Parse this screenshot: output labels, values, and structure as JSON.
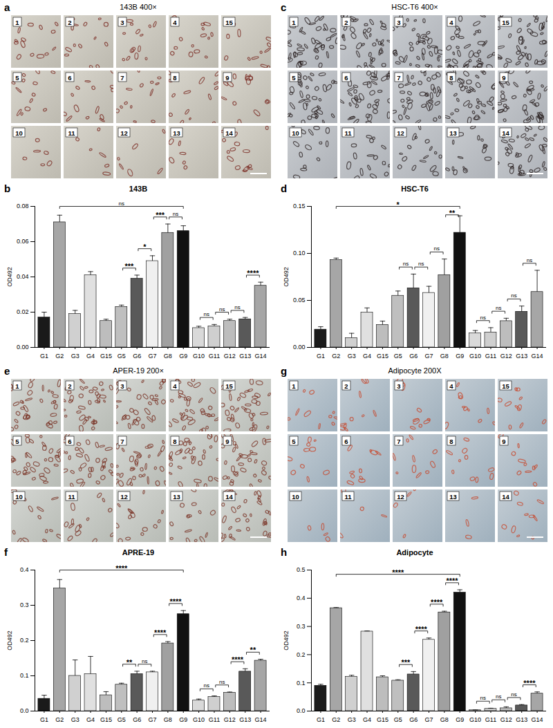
{
  "panels": [
    {
      "letter": "a",
      "title": "143B 400×",
      "tiles": [
        [
          "1",
          "2",
          "3",
          "4",
          "15"
        ],
        [
          "5",
          "6",
          "7",
          "8",
          "9"
        ],
        [
          "10",
          "11",
          "12",
          "13",
          "14"
        ]
      ]
    },
    {
      "letter": "c",
      "title": "HSC-T6 400×",
      "tiles": [
        [
          "1",
          "2",
          "3",
          "4",
          "15"
        ],
        [
          "5",
          "6",
          "7",
          "8",
          "9"
        ],
        [
          "10",
          "11",
          "12",
          "13",
          "14"
        ]
      ]
    },
    {
      "letter": "e",
      "title": "APER-19 200×",
      "tiles": [
        [
          "1",
          "2",
          "3",
          "4",
          "15"
        ],
        [
          "5",
          "6",
          "7",
          "8",
          "9"
        ],
        [
          "10",
          "11",
          "12",
          "13",
          "14"
        ]
      ]
    },
    {
      "letter": "g",
      "title": "Adipocyte 200X",
      "tiles": [
        [
          "1",
          "2",
          "3",
          "4",
          "15"
        ],
        [
          "5",
          "6",
          "7",
          "8",
          "9"
        ],
        [
          "10",
          "11",
          "12",
          "13",
          "14"
        ]
      ]
    }
  ],
  "chart_data": [
    {
      "panel": "b",
      "type": "bar",
      "title": "143B",
      "y_label": "OD492",
      "categories": [
        "G1",
        "G2",
        "G3",
        "G4",
        "G15",
        "G5",
        "G6",
        "G7",
        "G8",
        "G9",
        "G10",
        "G11",
        "G12",
        "G13",
        "G14"
      ],
      "values": [
        0.017,
        0.071,
        0.019,
        0.041,
        0.015,
        0.023,
        0.039,
        0.049,
        0.065,
        0.066,
        0.011,
        0.012,
        0.015,
        0.016,
        0.035
      ],
      "errors": [
        0.003,
        0.004,
        0.002,
        0.002,
        0.001,
        0.001,
        0.002,
        0.003,
        0.005,
        0.003,
        0.001,
        0.001,
        0.001,
        0.001,
        0.002
      ],
      "colors": [
        "#1a1a1a",
        "#a6a6a6",
        "#d0d0d0",
        "#e0e0e0",
        "#bdbdbd",
        "#bfbfbf",
        "#595959",
        "#f0f0f0",
        "#a0a0a0",
        "#111111",
        "#d9d9d9",
        "#cfcfcf",
        "#bdbdbd",
        "#595959",
        "#a6a6a6"
      ],
      "ylim": [
        0,
        0.08
      ],
      "yticks": [
        {
          "value": 0,
          "label": "0.00"
        },
        {
          "value": 0.02,
          "label": "0.02"
        },
        {
          "value": 0.04,
          "label": "0.04"
        },
        {
          "value": 0.06,
          "label": "0.06"
        },
        {
          "value": 0.08,
          "label": "0.08"
        }
      ],
      "annotations": [
        {
          "from": "G2",
          "to": "G9",
          "label": "ns"
        },
        {
          "from": "G5",
          "to": "G6",
          "label": "***"
        },
        {
          "from": "G6",
          "to": "G7",
          "label": "*"
        },
        {
          "from": "G7",
          "to": "G8",
          "label": "***"
        },
        {
          "from": "G8",
          "to": "G9",
          "label": "ns"
        },
        {
          "from": "G10",
          "to": "G11",
          "label": "ns"
        },
        {
          "from": "G11",
          "to": "G12",
          "label": "ns"
        },
        {
          "from": "G12",
          "to": "G13",
          "label": "ns"
        },
        {
          "from": "G13",
          "to": "G14",
          "label": "****"
        }
      ]
    },
    {
      "panel": "d",
      "type": "bar",
      "title": "HSC-T6",
      "y_label": "OD492",
      "categories": [
        "G1",
        "G2",
        "G3",
        "G4",
        "G15",
        "G5",
        "G6",
        "G7",
        "G8",
        "G9",
        "G10",
        "G11",
        "G12",
        "G13",
        "G14"
      ],
      "values": [
        0.019,
        0.093,
        0.01,
        0.037,
        0.024,
        0.055,
        0.063,
        0.058,
        0.077,
        0.122,
        0.015,
        0.016,
        0.028,
        0.038,
        0.059
      ],
      "errors": [
        0.003,
        0.002,
        0.005,
        0.005,
        0.004,
        0.005,
        0.015,
        0.007,
        0.017,
        0.018,
        0.003,
        0.005,
        0.003,
        0.006,
        0.023
      ],
      "colors": [
        "#1a1a1a",
        "#a6a6a6",
        "#d0d0d0",
        "#e0e0e0",
        "#bdbdbd",
        "#bfbfbf",
        "#595959",
        "#f0f0f0",
        "#a0a0a0",
        "#111111",
        "#d9d9d9",
        "#cfcfcf",
        "#bdbdbd",
        "#595959",
        "#a6a6a6"
      ],
      "ylim": [
        0,
        0.15
      ],
      "yticks": [
        {
          "value": 0,
          "label": "0.00"
        },
        {
          "value": 0.05,
          "label": "0.05"
        },
        {
          "value": 0.1,
          "label": "0.10"
        },
        {
          "value": 0.15,
          "label": "0.15"
        }
      ],
      "annotations": [
        {
          "from": "G2",
          "to": "G9",
          "label": "*"
        },
        {
          "from": "G5",
          "to": "G6",
          "label": "ns"
        },
        {
          "from": "G6",
          "to": "G7",
          "label": "ns"
        },
        {
          "from": "G7",
          "to": "G8",
          "label": "ns"
        },
        {
          "from": "G8",
          "to": "G9",
          "label": "**"
        },
        {
          "from": "G10",
          "to": "G11",
          "label": "ns"
        },
        {
          "from": "G11",
          "to": "G12",
          "label": "ns"
        },
        {
          "from": "G12",
          "to": "G13",
          "label": "ns"
        },
        {
          "from": "G13",
          "to": "G14",
          "label": "ns"
        }
      ]
    },
    {
      "panel": "f",
      "type": "bar",
      "title": "APRE-19",
      "y_label": "OD492",
      "categories": [
        "G1",
        "G2",
        "G3",
        "G4",
        "G15",
        "G5",
        "G6",
        "G7",
        "G8",
        "G9",
        "G10",
        "G11",
        "G12",
        "G13",
        "G14"
      ],
      "values": [
        0.035,
        0.348,
        0.1,
        0.105,
        0.045,
        0.075,
        0.105,
        0.11,
        0.192,
        0.275,
        0.03,
        0.04,
        0.052,
        0.112,
        0.143
      ],
      "errors": [
        0.01,
        0.025,
        0.045,
        0.05,
        0.01,
        0.004,
        0.008,
        0.003,
        0.005,
        0.01,
        0.004,
        0.003,
        0.002,
        0.008,
        0.004
      ],
      "colors": [
        "#1a1a1a",
        "#a6a6a6",
        "#d0d0d0",
        "#e0e0e0",
        "#bdbdbd",
        "#bfbfbf",
        "#595959",
        "#f0f0f0",
        "#a0a0a0",
        "#111111",
        "#d9d9d9",
        "#cfcfcf",
        "#bdbdbd",
        "#595959",
        "#a6a6a6"
      ],
      "ylim": [
        0,
        0.4
      ],
      "yticks": [
        {
          "value": 0,
          "label": "0.0"
        },
        {
          "value": 0.1,
          "label": "0.1"
        },
        {
          "value": 0.2,
          "label": "0.2"
        },
        {
          "value": 0.3,
          "label": "0.3"
        },
        {
          "value": 0.4,
          "label": "0.4"
        }
      ],
      "annotations": [
        {
          "from": "G2",
          "to": "G9",
          "label": "****"
        },
        {
          "from": "G5",
          "to": "G6",
          "label": "**"
        },
        {
          "from": "G6",
          "to": "G7",
          "label": "ns"
        },
        {
          "from": "G7",
          "to": "G8",
          "label": "****"
        },
        {
          "from": "G8",
          "to": "G9",
          "label": "****"
        },
        {
          "from": "G10",
          "to": "G11",
          "label": "ns"
        },
        {
          "from": "G11",
          "to": "G12",
          "label": "ns"
        },
        {
          "from": "G12",
          "to": "G13",
          "label": "****"
        },
        {
          "from": "G13",
          "to": "G14",
          "label": "**"
        }
      ]
    },
    {
      "panel": "h",
      "type": "bar",
      "title": "Adipocyte",
      "y_label": "OD492",
      "categories": [
        "G1",
        "G2",
        "G3",
        "G4",
        "G15",
        "G5",
        "G6",
        "G7",
        "G8",
        "G9",
        "G10",
        "G11",
        "G12",
        "G13",
        "G14"
      ],
      "values": [
        0.09,
        0.365,
        0.122,
        0.282,
        0.12,
        0.108,
        0.13,
        0.253,
        0.35,
        0.42,
        0.003,
        0.008,
        0.01,
        0.02,
        0.062
      ],
      "errors": [
        0.005,
        0.002,
        0.005,
        0.002,
        0.005,
        0.003,
        0.01,
        0.006,
        0.004,
        0.01,
        0.001,
        0.002,
        0.005,
        0.003,
        0.006
      ],
      "colors": [
        "#1a1a1a",
        "#a6a6a6",
        "#d0d0d0",
        "#e0e0e0",
        "#bdbdbd",
        "#bfbfbf",
        "#595959",
        "#f0f0f0",
        "#a0a0a0",
        "#111111",
        "#d9d9d9",
        "#cfcfcf",
        "#bdbdbd",
        "#595959",
        "#a6a6a6"
      ],
      "ylim": [
        0,
        0.5
      ],
      "yticks": [
        {
          "value": 0,
          "label": "0.0"
        },
        {
          "value": 0.1,
          "label": "0.1"
        },
        {
          "value": 0.2,
          "label": "0.2"
        },
        {
          "value": 0.3,
          "label": "0.3"
        },
        {
          "value": 0.4,
          "label": "0.4"
        },
        {
          "value": 0.5,
          "label": "0.5"
        }
      ],
      "annotations": [
        {
          "from": "G2",
          "to": "G9",
          "label": "****"
        },
        {
          "from": "G5",
          "to": "G6",
          "label": "***"
        },
        {
          "from": "G6",
          "to": "G7",
          "label": "****"
        },
        {
          "from": "G7",
          "to": "G8",
          "label": "****"
        },
        {
          "from": "G8",
          "to": "G9",
          "label": "****"
        },
        {
          "from": "G10",
          "to": "G11",
          "label": "ns"
        },
        {
          "from": "G11",
          "to": "G12",
          "label": "ns"
        },
        {
          "from": "G12",
          "to": "G13",
          "label": "ns"
        },
        {
          "from": "G13",
          "to": "G14",
          "label": "****"
        }
      ]
    }
  ]
}
